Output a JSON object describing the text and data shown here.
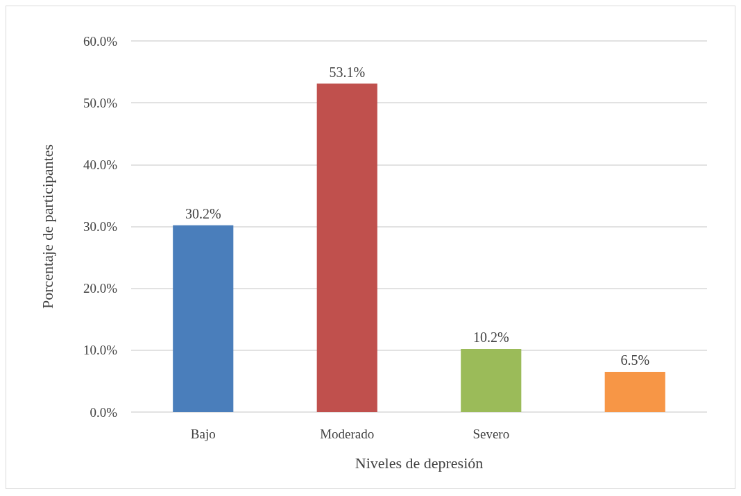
{
  "chart_data": {
    "type": "bar",
    "xlabel": "Niveles de depresión",
    "ylabel": "Porcentaje de participantes",
    "categories": [
      "Bajo",
      "Moderado",
      "Severo",
      null
    ],
    "values": [
      30.2,
      53.1,
      10.2,
      6.5
    ],
    "colors": [
      "#4a7ebb",
      "#c0504d",
      "#9bbb59",
      "#f79646"
    ],
    "value_labels": [
      "30.2%",
      "53.1%",
      "10.2%",
      "6.5%"
    ],
    "ylim": [
      0,
      60
    ],
    "yticks": [
      {
        "value": 0,
        "label": "0.0%"
      },
      {
        "value": 10,
        "label": "10.0%"
      },
      {
        "value": 20,
        "label": "20.0%"
      },
      {
        "value": 30,
        "label": "30.0%"
      },
      {
        "value": 40,
        "label": "40.0%"
      },
      {
        "value": 50,
        "label": "50.0%"
      },
      {
        "value": 60,
        "label": "60.0%"
      }
    ],
    "grid": "y"
  }
}
